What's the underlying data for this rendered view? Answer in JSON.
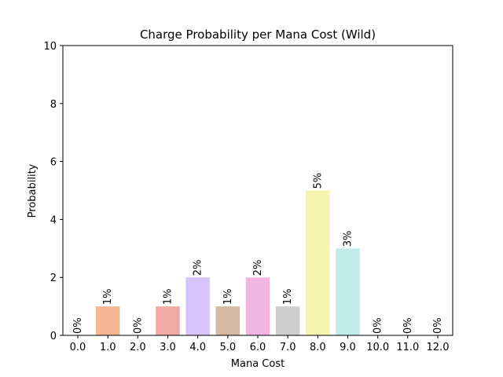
{
  "chart_data": {
    "type": "bar",
    "title": "Charge Probability per Mana Cost (Wild)",
    "xlabel": "Mana Cost",
    "ylabel": "Probability",
    "categories": [
      "0.0",
      "1.0",
      "2.0",
      "3.0",
      "4.0",
      "5.0",
      "6.0",
      "7.0",
      "8.0",
      "9.0",
      "10.0",
      "11.0",
      "12.0"
    ],
    "values": [
      0,
      1,
      0,
      1,
      2,
      1,
      2,
      1,
      5,
      3,
      0,
      0,
      0
    ],
    "data_labels": [
      "0%",
      "1%",
      "0%",
      "1%",
      "2%",
      "1%",
      "2%",
      "1%",
      "5%",
      "3%",
      "0%",
      "0%",
      "0%"
    ],
    "colors": [
      "#ffb3ba",
      "#f4b994",
      "#c6e5d9",
      "#f2aaa7",
      "#d5c5f8",
      "#d4b9a3",
      "#f1b6e0",
      "#cfcfcf",
      "#f5f4b1",
      "#c1ebe8",
      "#ffb3ba",
      "#f4b994",
      "#c6e5d9"
    ],
    "yticks": [
      0,
      2,
      4,
      6,
      8,
      10
    ],
    "ytick_labels": [
      "0",
      "2",
      "4",
      "6",
      "8",
      "10"
    ],
    "ylim": [
      0,
      10
    ],
    "grid": false,
    "legend": "none"
  }
}
